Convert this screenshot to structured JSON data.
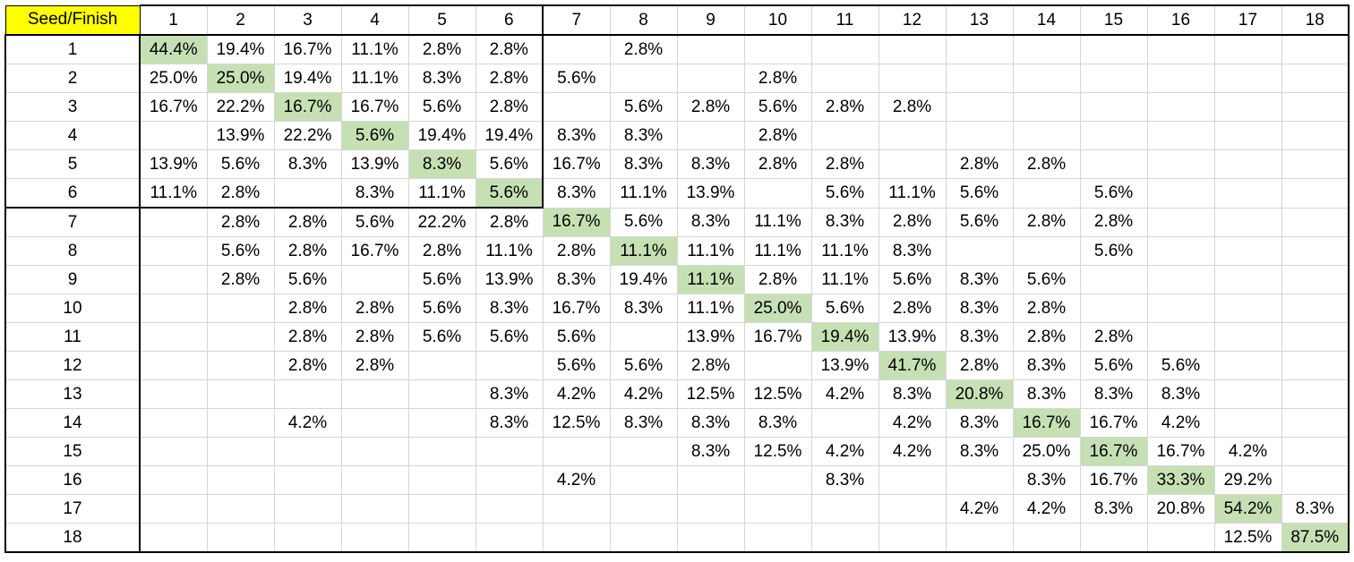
{
  "table": {
    "corner_label": "Seed/Finish",
    "columns": [
      "1",
      "2",
      "3",
      "4",
      "5",
      "6",
      "7",
      "8",
      "9",
      "10",
      "11",
      "12",
      "13",
      "14",
      "15",
      "16",
      "17",
      "18"
    ],
    "rows": [
      {
        "seed": "1",
        "cells": [
          "44.4%",
          "19.4%",
          "16.7%",
          "11.1%",
          "2.8%",
          "2.8%",
          "",
          "2.8%",
          "",
          "",
          "",
          "",
          "",
          "",
          "",
          "",
          "",
          ""
        ]
      },
      {
        "seed": "2",
        "cells": [
          "25.0%",
          "25.0%",
          "19.4%",
          "11.1%",
          "8.3%",
          "2.8%",
          "5.6%",
          "",
          "",
          "2.8%",
          "",
          "",
          "",
          "",
          "",
          "",
          "",
          ""
        ]
      },
      {
        "seed": "3",
        "cells": [
          "16.7%",
          "22.2%",
          "16.7%",
          "16.7%",
          "5.6%",
          "2.8%",
          "",
          "5.6%",
          "2.8%",
          "5.6%",
          "2.8%",
          "2.8%",
          "",
          "",
          "",
          "",
          "",
          ""
        ]
      },
      {
        "seed": "4",
        "cells": [
          "",
          "13.9%",
          "22.2%",
          "5.6%",
          "19.4%",
          "19.4%",
          "8.3%",
          "8.3%",
          "",
          "2.8%",
          "",
          "",
          "",
          "",
          "",
          "",
          "",
          ""
        ]
      },
      {
        "seed": "5",
        "cells": [
          "13.9%",
          "5.6%",
          "8.3%",
          "13.9%",
          "8.3%",
          "5.6%",
          "16.7%",
          "8.3%",
          "8.3%",
          "2.8%",
          "2.8%",
          "",
          "2.8%",
          "2.8%",
          "",
          "",
          "",
          ""
        ]
      },
      {
        "seed": "6",
        "cells": [
          "11.1%",
          "2.8%",
          "",
          "8.3%",
          "11.1%",
          "5.6%",
          "8.3%",
          "11.1%",
          "13.9%",
          "",
          "5.6%",
          "11.1%",
          "5.6%",
          "",
          "5.6%",
          "",
          "",
          ""
        ]
      },
      {
        "seed": "7",
        "cells": [
          "",
          "2.8%",
          "2.8%",
          "5.6%",
          "22.2%",
          "2.8%",
          "16.7%",
          "5.6%",
          "8.3%",
          "11.1%",
          "8.3%",
          "2.8%",
          "5.6%",
          "2.8%",
          "2.8%",
          "",
          "",
          ""
        ]
      },
      {
        "seed": "8",
        "cells": [
          "",
          "5.6%",
          "2.8%",
          "16.7%",
          "2.8%",
          "11.1%",
          "2.8%",
          "11.1%",
          "11.1%",
          "11.1%",
          "11.1%",
          "8.3%",
          "",
          "",
          "5.6%",
          "",
          "",
          ""
        ]
      },
      {
        "seed": "9",
        "cells": [
          "",
          "2.8%",
          "5.6%",
          "",
          "5.6%",
          "13.9%",
          "8.3%",
          "19.4%",
          "11.1%",
          "2.8%",
          "11.1%",
          "5.6%",
          "8.3%",
          "5.6%",
          "",
          "",
          "",
          ""
        ]
      },
      {
        "seed": "10",
        "cells": [
          "",
          "",
          "2.8%",
          "2.8%",
          "5.6%",
          "8.3%",
          "16.7%",
          "8.3%",
          "11.1%",
          "25.0%",
          "5.6%",
          "2.8%",
          "8.3%",
          "2.8%",
          "",
          "",
          "",
          ""
        ]
      },
      {
        "seed": "11",
        "cells": [
          "",
          "",
          "2.8%",
          "2.8%",
          "5.6%",
          "5.6%",
          "5.6%",
          "",
          "13.9%",
          "16.7%",
          "19.4%",
          "13.9%",
          "8.3%",
          "2.8%",
          "2.8%",
          "",
          "",
          ""
        ]
      },
      {
        "seed": "12",
        "cells": [
          "",
          "",
          "2.8%",
          "2.8%",
          "",
          "",
          "5.6%",
          "5.6%",
          "2.8%",
          "",
          "13.9%",
          "41.7%",
          "2.8%",
          "8.3%",
          "5.6%",
          "5.6%",
          "",
          ""
        ]
      },
      {
        "seed": "13",
        "cells": [
          "",
          "",
          "",
          "",
          "",
          "8.3%",
          "4.2%",
          "4.2%",
          "12.5%",
          "12.5%",
          "4.2%",
          "8.3%",
          "20.8%",
          "8.3%",
          "8.3%",
          "8.3%",
          "",
          ""
        ]
      },
      {
        "seed": "14",
        "cells": [
          "",
          "",
          "4.2%",
          "",
          "",
          "8.3%",
          "12.5%",
          "8.3%",
          "8.3%",
          "8.3%",
          "",
          "4.2%",
          "8.3%",
          "16.7%",
          "16.7%",
          "4.2%",
          "",
          ""
        ]
      },
      {
        "seed": "15",
        "cells": [
          "",
          "",
          "",
          "",
          "",
          "",
          "",
          "",
          "8.3%",
          "12.5%",
          "4.2%",
          "4.2%",
          "8.3%",
          "25.0%",
          "16.7%",
          "16.7%",
          "4.2%",
          ""
        ]
      },
      {
        "seed": "16",
        "cells": [
          "",
          "",
          "",
          "",
          "",
          "",
          "4.2%",
          "",
          "",
          "",
          "8.3%",
          "",
          "",
          "8.3%",
          "16.7%",
          "33.3%",
          "29.2%",
          ""
        ]
      },
      {
        "seed": "17",
        "cells": [
          "",
          "",
          "",
          "",
          "",
          "",
          "",
          "",
          "",
          "",
          "",
          "",
          "4.2%",
          "4.2%",
          "8.3%",
          "20.8%",
          "54.2%",
          "8.3%"
        ]
      },
      {
        "seed": "18",
        "cells": [
          "",
          "",
          "",
          "",
          "",
          "",
          "",
          "",
          "",
          "",
          "",
          "",
          "",
          "",
          "",
          "",
          "12.5%",
          "87.5%"
        ]
      }
    ]
  },
  "colors": {
    "header_highlight": "#ffff00",
    "diagonal_highlight": "#c6e0b4",
    "gridline": "#d6d6d6",
    "border": "#000000"
  }
}
